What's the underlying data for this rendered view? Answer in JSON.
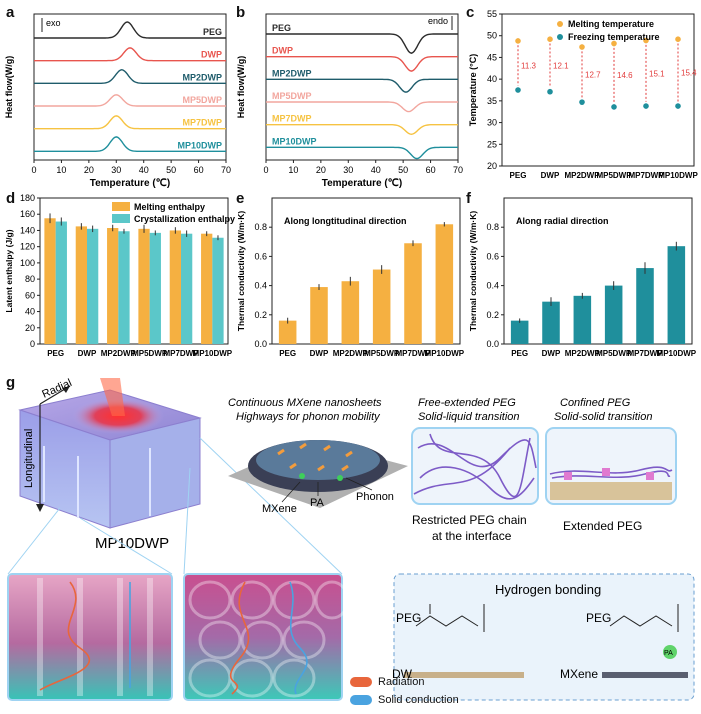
{
  "labels": {
    "a": "a",
    "b": "b",
    "c": "c",
    "d": "d",
    "e": "e",
    "f": "f",
    "g": "g"
  },
  "colors": {
    "peg": "#2b2b2b",
    "dwp": "#e8554e",
    "mp2": "#1f5c6b",
    "mp5": "#f2a69e",
    "mp7": "#f6c342",
    "mp10": "#1f8f9c",
    "orange": "#f5b041",
    "teal": "#5bc7c9",
    "red_text": "#e23b3b",
    "radiation": "#e8663c",
    "solid": "#4aa3e0"
  },
  "chart_data": [
    {
      "id": "a",
      "type": "line",
      "xlabel": "Temperature (℃)",
      "ylabel": "Heat flow(W/g)",
      "annotation": "exo",
      "xlim": [
        0,
        70
      ],
      "xticks": [
        0,
        10,
        20,
        30,
        40,
        50,
        60,
        70
      ],
      "series": [
        {
          "name": "PEG",
          "peak": 34,
          "height": 1.0,
          "dir": "up",
          "offset": 0
        },
        {
          "name": "DWP",
          "peak": 35,
          "height": 0.8,
          "dir": "up",
          "offset": 1
        },
        {
          "name": "MP2DWP",
          "peak": 32,
          "height": 0.85,
          "dir": "up",
          "offset": 2
        },
        {
          "name": "MP5DWP",
          "peak": 30,
          "height": 0.7,
          "dir": "up",
          "offset": 3
        },
        {
          "name": "MP7DWP",
          "peak": 30,
          "height": 0.8,
          "dir": "up",
          "offset": 4
        },
        {
          "name": "MP10DWP",
          "peak": 30,
          "height": 0.9,
          "dir": "up",
          "offset": 5
        }
      ]
    },
    {
      "id": "b",
      "type": "line",
      "xlabel": "Temperature (℃)",
      "ylabel": "Heat flow(W/g)",
      "annotation": "endo",
      "xlim": [
        0,
        70
      ],
      "xticks": [
        0,
        10,
        20,
        30,
        40,
        50,
        60,
        70
      ],
      "series": [
        {
          "name": "PEG",
          "peak": 53,
          "height": 1.2,
          "dir": "down",
          "offset": 0
        },
        {
          "name": "DWP",
          "peak": 53,
          "height": 0.9,
          "dir": "down",
          "offset": 1
        },
        {
          "name": "MP2DWP",
          "peak": 51,
          "height": 0.8,
          "dir": "down",
          "offset": 2
        },
        {
          "name": "MP5DWP",
          "peak": 52,
          "height": 0.6,
          "dir": "down",
          "offset": 3
        },
        {
          "name": "MP7DWP",
          "peak": 53,
          "height": 0.6,
          "dir": "down",
          "offset": 4
        },
        {
          "name": "MP10DWP",
          "peak": 55,
          "height": 0.7,
          "dir": "down",
          "offset": 5
        }
      ]
    },
    {
      "id": "c",
      "type": "scatter",
      "ylabel": "Temperature (°C)",
      "ylim": [
        20,
        55
      ],
      "yticks": [
        20,
        25,
        30,
        35,
        40,
        45,
        50,
        55
      ],
      "categories": [
        "PEG",
        "DWP",
        "MP2DWP",
        "MP5DWP",
        "MP7DWP",
        "MP10DWP"
      ],
      "series": [
        {
          "name": "Melting temperature",
          "values": [
            48.8,
            49.2,
            47.4,
            48.2,
            48.9,
            49.2
          ]
        },
        {
          "name": "Freezing temperature",
          "values": [
            37.5,
            37.1,
            34.7,
            33.6,
            33.8,
            33.8
          ]
        }
      ],
      "gaps": [
        "11.3",
        "12.1",
        "12.7",
        "14.6",
        "15.1",
        "15.4"
      ]
    },
    {
      "id": "d",
      "type": "bar",
      "ylabel": "Latent enthalpy (J/g)",
      "ylim": [
        0,
        180
      ],
      "yticks": [
        0,
        20,
        40,
        60,
        80,
        100,
        120,
        140,
        160,
        180
      ],
      "categories": [
        "PEG",
        "DWP",
        "MP2DWP",
        "MP5DWP",
        "MP7DWP",
        "MP10DWP"
      ],
      "series": [
        {
          "name": "Melting enthalpy",
          "values": [
            155,
            145,
            143,
            142,
            140,
            136
          ],
          "err": [
            6,
            4,
            4,
            5,
            4,
            3
          ]
        },
        {
          "name": "Crystallization enthalpy",
          "values": [
            151,
            142,
            139,
            137,
            136,
            131
          ],
          "err": [
            5,
            4,
            3,
            3,
            4,
            3
          ]
        }
      ]
    },
    {
      "id": "e",
      "type": "bar",
      "ylabel": "Thermal conductivity (W/m·K)",
      "title": "Along longtitudinal direction",
      "ylim": [
        0,
        1.0
      ],
      "yticks": [
        0.0,
        0.2,
        0.4,
        0.6,
        0.8
      ],
      "categories": [
        "PEG",
        "DWP",
        "MP2DWP",
        "MP5DWP",
        "MP7DWP",
        "MP10DWP"
      ],
      "values": [
        0.16,
        0.39,
        0.43,
        0.51,
        0.69,
        0.82
      ],
      "err": [
        0.02,
        0.02,
        0.03,
        0.03,
        0.02,
        0.015
      ]
    },
    {
      "id": "f",
      "type": "bar",
      "ylabel": "Thermal conductivity (W/m·K)",
      "title": "Along radial direction",
      "ylim": [
        0,
        1.0
      ],
      "yticks": [
        0.0,
        0.2,
        0.4,
        0.6,
        0.8
      ],
      "categories": [
        "PEG",
        "DWP",
        "MP2DWP",
        "MP5DWP",
        "MP7DWP",
        "MP10DWP"
      ],
      "values": [
        0.16,
        0.29,
        0.33,
        0.4,
        0.52,
        0.67
      ],
      "err": [
        0.015,
        0.03,
        0.02,
        0.03,
        0.04,
        0.03
      ]
    }
  ],
  "schematic": {
    "radial": "Radial",
    "longitudinal": "Longitudinal",
    "sample": "MP10DWP",
    "mxene_title_1": "Continuous MXene nanosheets",
    "mxene_title_2": "Highways for phonon mobility",
    "mxene": "MXene",
    "pa": "PA",
    "phonon": "Phonon",
    "free_title_1": "Free-extended PEG",
    "free_title_2": "Solid-liquid transition",
    "confined_title_1": "Confined PEG",
    "confined_title_2": "Solid-solid transition",
    "restricted_1": "Restricted PEG chain",
    "restricted_2": "at the interface",
    "extended": "Extended PEG",
    "hbond_title": "Hydrogen bonding",
    "peg": "PEG",
    "dw": "DW",
    "mxene_sub": "MXene",
    "pa_small": "PA",
    "legend_radiation": "Radiation",
    "legend_solid": "Solid conduction"
  }
}
